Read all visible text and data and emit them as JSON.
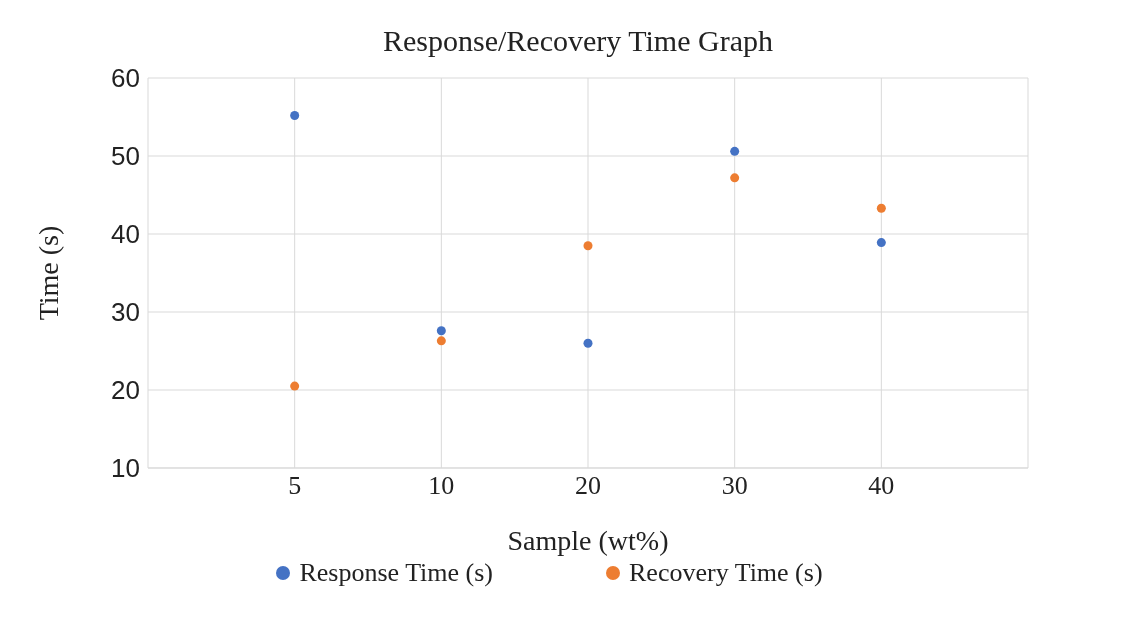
{
  "chart_data": {
    "type": "scatter",
    "title": "Response/Recovery Time Graph",
    "xlabel": "Sample (wt%)",
    "ylabel": "Time (s)",
    "categories": [
      "5",
      "10",
      "20",
      "30",
      "40"
    ],
    "series": [
      {
        "name": "Response Time (s)",
        "color": "#4472c4",
        "values": [
          55.2,
          27.6,
          26.0,
          50.6,
          38.9
        ]
      },
      {
        "name": "Recovery Time (s)",
        "color": "#ed7d31",
        "values": [
          20.5,
          26.3,
          38.5,
          47.2,
          43.3
        ]
      }
    ],
    "ylim": [
      10,
      60
    ],
    "yticks": [
      10,
      20,
      30,
      40,
      50,
      60
    ],
    "grid": true,
    "legend": "bottom",
    "marker": "circle"
  }
}
